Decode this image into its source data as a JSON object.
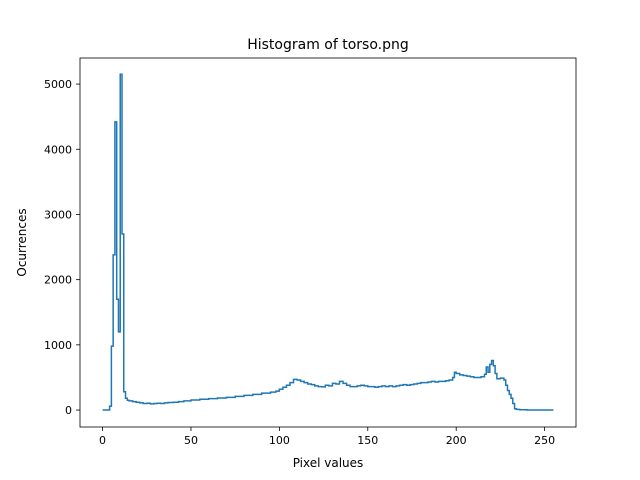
{
  "chart_data": {
    "type": "line",
    "title": "Histogram of torso.png",
    "xlabel": "Pixel values",
    "ylabel": "Ocurrences",
    "xlim": [
      -12.75,
      267.75
    ],
    "ylim": [
      -260,
      5400
    ],
    "xticks": [
      0,
      50,
      100,
      150,
      200,
      250
    ],
    "yticks": [
      0,
      1000,
      2000,
      3000,
      4000,
      5000
    ],
    "grid": false,
    "line_color": "#1f77b4",
    "step": true,
    "series": [
      {
        "points": [
          [
            0,
            0
          ],
          [
            3,
            0
          ],
          [
            4,
            60
          ],
          [
            5,
            980
          ],
          [
            6,
            2380
          ],
          [
            7,
            4420
          ],
          [
            8,
            1700
          ],
          [
            9,
            1200
          ],
          [
            10,
            5150
          ],
          [
            11,
            2700
          ],
          [
            12,
            280
          ],
          [
            13,
            180
          ],
          [
            14,
            150
          ],
          [
            15,
            140
          ],
          [
            17,
            130
          ],
          [
            19,
            120
          ],
          [
            21,
            110
          ],
          [
            23,
            100
          ],
          [
            25,
            105
          ],
          [
            27,
            95
          ],
          [
            29,
            100
          ],
          [
            31,
            105
          ],
          [
            33,
            100
          ],
          [
            35,
            110
          ],
          [
            37,
            115
          ],
          [
            40,
            120
          ],
          [
            43,
            130
          ],
          [
            46,
            140
          ],
          [
            50,
            155
          ],
          [
            55,
            165
          ],
          [
            60,
            175
          ],
          [
            65,
            185
          ],
          [
            70,
            195
          ],
          [
            75,
            210
          ],
          [
            80,
            225
          ],
          [
            85,
            240
          ],
          [
            90,
            260
          ],
          [
            95,
            275
          ],
          [
            98,
            290
          ],
          [
            100,
            320
          ],
          [
            102,
            350
          ],
          [
            104,
            380
          ],
          [
            106,
            420
          ],
          [
            108,
            470
          ],
          [
            110,
            460
          ],
          [
            112,
            440
          ],
          [
            114,
            420
          ],
          [
            116,
            400
          ],
          [
            118,
            390
          ],
          [
            120,
            370
          ],
          [
            122,
            360
          ],
          [
            124,
            355
          ],
          [
            126,
            380
          ],
          [
            128,
            370
          ],
          [
            130,
            410
          ],
          [
            132,
            400
          ],
          [
            134,
            440
          ],
          [
            136,
            410
          ],
          [
            138,
            380
          ],
          [
            140,
            360
          ],
          [
            142,
            360
          ],
          [
            144,
            370
          ],
          [
            146,
            380
          ],
          [
            148,
            370
          ],
          [
            150,
            360
          ],
          [
            152,
            360
          ],
          [
            154,
            350
          ],
          [
            156,
            360
          ],
          [
            158,
            370
          ],
          [
            160,
            360
          ],
          [
            162,
            370
          ],
          [
            164,
            360
          ],
          [
            166,
            370
          ],
          [
            168,
            380
          ],
          [
            170,
            390
          ],
          [
            172,
            380
          ],
          [
            174,
            390
          ],
          [
            176,
            400
          ],
          [
            178,
            410
          ],
          [
            180,
            420
          ],
          [
            182,
            420
          ],
          [
            184,
            430
          ],
          [
            186,
            440
          ],
          [
            188,
            430
          ],
          [
            190,
            440
          ],
          [
            192,
            440
          ],
          [
            194,
            450
          ],
          [
            196,
            460
          ],
          [
            198,
            500
          ],
          [
            199,
            580
          ],
          [
            200,
            560
          ],
          [
            202,
            540
          ],
          [
            204,
            530
          ],
          [
            206,
            520
          ],
          [
            208,
            510
          ],
          [
            210,
            500
          ],
          [
            212,
            500
          ],
          [
            214,
            510
          ],
          [
            216,
            550
          ],
          [
            217,
            660
          ],
          [
            218,
            580
          ],
          [
            219,
            700
          ],
          [
            220,
            760
          ],
          [
            221,
            680
          ],
          [
            222,
            560
          ],
          [
            223,
            480
          ],
          [
            225,
            490
          ],
          [
            227,
            460
          ],
          [
            228,
            380
          ],
          [
            229,
            300
          ],
          [
            230,
            240
          ],
          [
            231,
            180
          ],
          [
            232,
            100
          ],
          [
            233,
            20
          ],
          [
            234,
            10
          ],
          [
            236,
            5
          ],
          [
            240,
            0
          ],
          [
            255,
            0
          ]
        ]
      }
    ]
  }
}
